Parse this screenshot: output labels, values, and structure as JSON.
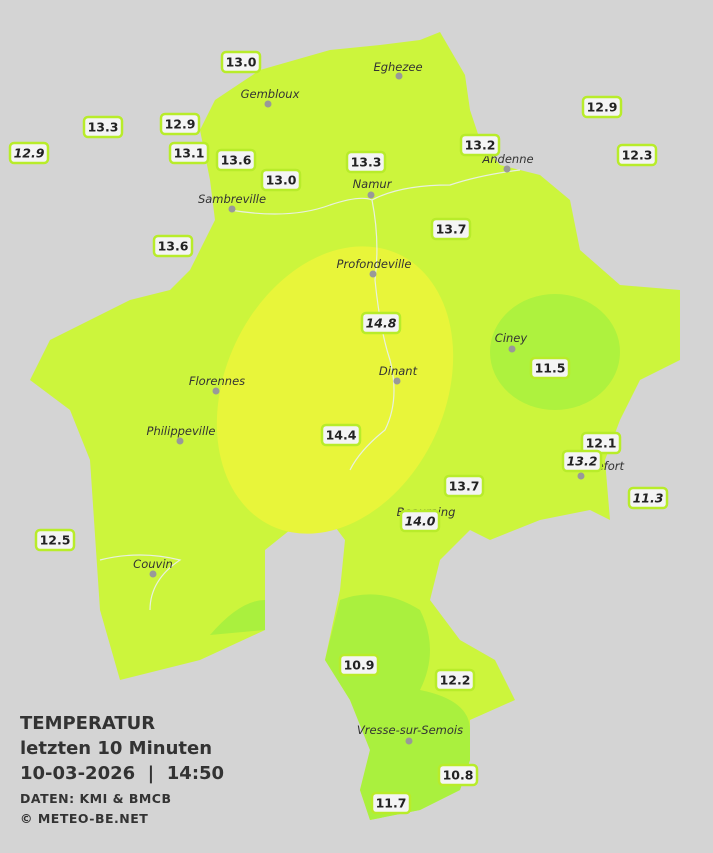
{
  "title": {
    "line1": "TEMPERATUR",
    "line2": "letzten 10 Minuten",
    "line3": "10-03-2026  |  14:50",
    "source": "DATEN: KMI & BMCB",
    "copyright": "© METEO-BE.NET"
  },
  "towns": [
    {
      "label": "Eghezee"
    },
    {
      "label": "Gembloux"
    },
    {
      "label": "Andenne"
    },
    {
      "label": "Namur"
    },
    {
      "label": "Sambreville"
    },
    {
      "label": "Profondeville"
    },
    {
      "label": "Ciney"
    },
    {
      "label": "Dinant"
    },
    {
      "label": "Florennes"
    },
    {
      "label": "Philippeville"
    },
    {
      "label": "Rochefort"
    },
    {
      "label": "Beauraing"
    },
    {
      "label": "Couvin"
    },
    {
      "label": "Vresse-sur-Semois"
    }
  ],
  "stations": [
    {
      "value": "13.0",
      "italic": false
    },
    {
      "value": "13.3",
      "italic": false
    },
    {
      "value": "12.9",
      "italic": false
    },
    {
      "value": "12.9",
      "italic": true
    },
    {
      "value": "13.1",
      "italic": false
    },
    {
      "value": "13.6",
      "italic": false
    },
    {
      "value": "13.0",
      "italic": false
    },
    {
      "value": "13.3",
      "italic": false
    },
    {
      "value": "13.2",
      "italic": false
    },
    {
      "value": "12.9",
      "italic": false
    },
    {
      "value": "12.3",
      "italic": false
    },
    {
      "value": "13.6",
      "italic": false
    },
    {
      "value": "13.7",
      "italic": false
    },
    {
      "value": "14.8",
      "italic": true
    },
    {
      "value": "11.5",
      "italic": false
    },
    {
      "value": "14.4",
      "italic": false
    },
    {
      "value": "12.1",
      "italic": false
    },
    {
      "value": "13.2",
      "italic": true
    },
    {
      "value": "11.3",
      "italic": true
    },
    {
      "value": "13.7",
      "italic": false
    },
    {
      "value": "14.0",
      "italic": true
    },
    {
      "value": "12.5",
      "italic": false
    },
    {
      "value": "10.9",
      "italic": false
    },
    {
      "value": "12.2",
      "italic": false
    },
    {
      "value": "10.8",
      "italic": false
    },
    {
      "value": "11.7",
      "italic": false
    }
  ]
}
